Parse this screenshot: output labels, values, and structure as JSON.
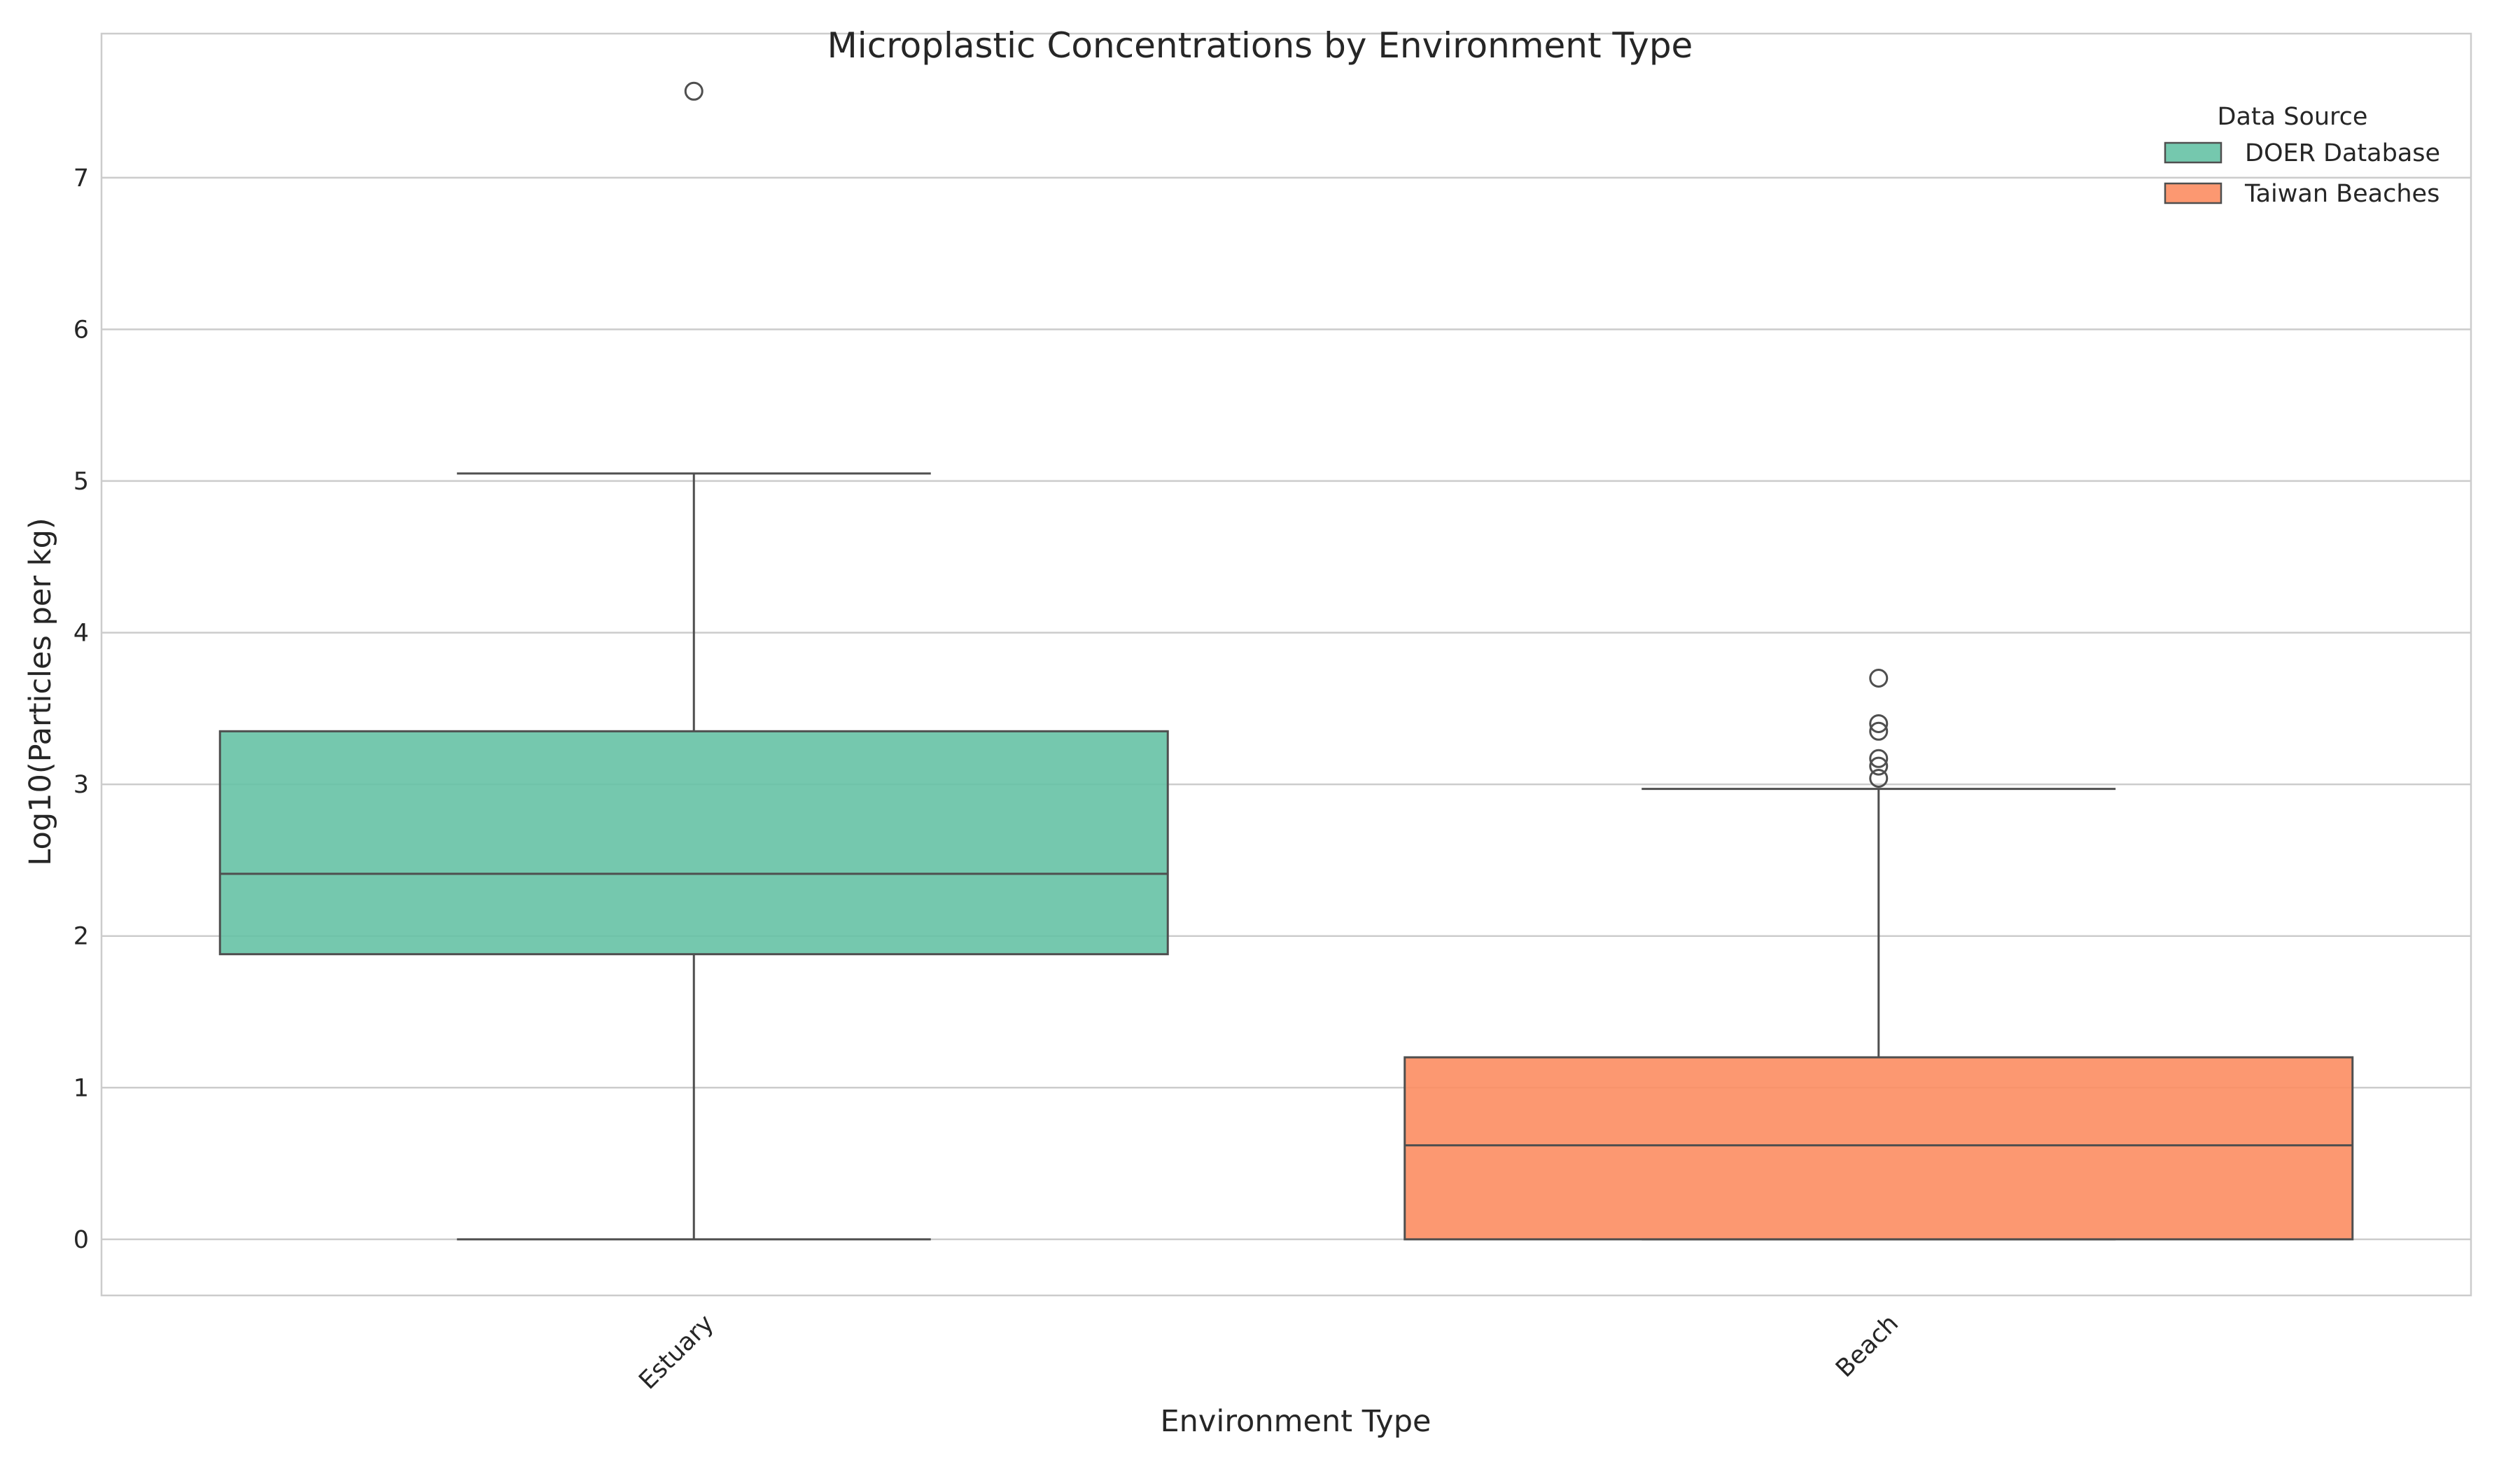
{
  "chart_data": {
    "type": "box",
    "title": "Microplastic Concentrations by Environment Type",
    "xlabel": "Environment Type",
    "ylabel": "Log10(Particles per kg)",
    "categories": [
      "Estuary",
      "Beach"
    ],
    "ylim": [
      -0.37,
      7.95
    ],
    "yticks": [
      0,
      1,
      2,
      3,
      4,
      5,
      6,
      7
    ],
    "ytick_labels": [
      "0",
      "1",
      "2",
      "3",
      "4",
      "5",
      "6",
      "7"
    ],
    "grid": true,
    "legend": {
      "title": "Data Source",
      "placement": "top-right"
    },
    "series": [
      {
        "name": "DOER Database",
        "color": "#66c2a5",
        "category": "Estuary",
        "whisker_low": 0.0,
        "q1": 1.88,
        "median": 2.41,
        "q3": 3.35,
        "whisker_high": 5.05,
        "outliers": [
          7.57
        ]
      },
      {
        "name": "Taiwan Beaches",
        "color": "#fc8d62",
        "category": "Beach",
        "whisker_low": 0.0,
        "q1": 0.0,
        "median": 0.62,
        "q3": 1.2,
        "whisker_high": 2.97,
        "outliers": [
          3.7,
          3.4,
          3.35,
          3.17,
          3.12,
          3.04
        ]
      }
    ]
  }
}
